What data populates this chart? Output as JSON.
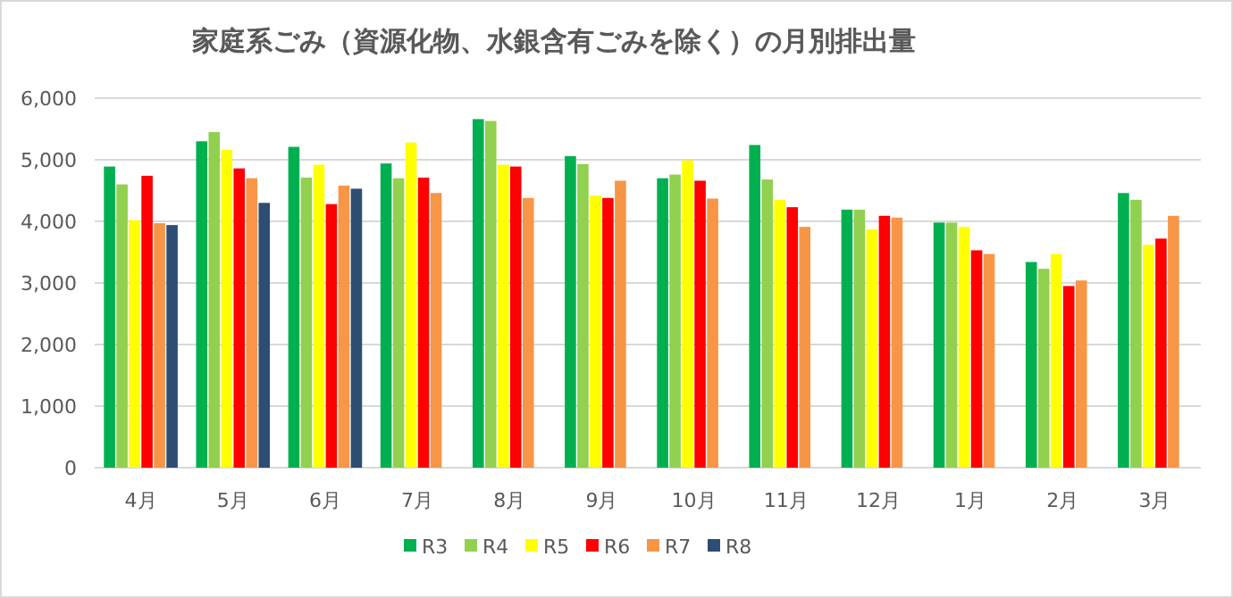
{
  "chart_data": {
    "type": "bar",
    "title": "家庭系ごみ（資源化物、水銀含有ごみを除く）の月別排出量",
    "categories": [
      "4月",
      "5月",
      "6月",
      "7月",
      "8月",
      "9月",
      "10月",
      "11月",
      "12月",
      "1月",
      "2月",
      "3月"
    ],
    "series": [
      {
        "name": "R3",
        "color": "#00b050",
        "values": [
          4890,
          5300,
          5210,
          4940,
          5660,
          5060,
          4700,
          5240,
          4190,
          3980,
          3340,
          4460
        ]
      },
      {
        "name": "R4",
        "color": "#92d050",
        "values": [
          4600,
          5450,
          4710,
          4700,
          5630,
          4930,
          4760,
          4680,
          4190,
          3980,
          3230,
          4350
        ]
      },
      {
        "name": "R5",
        "color": "#ffff00",
        "values": [
          4020,
          5160,
          4920,
          5280,
          4920,
          4420,
          4990,
          4350,
          3870,
          3910,
          3470,
          3620
        ]
      },
      {
        "name": "R6",
        "color": "#ff0000",
        "values": [
          4740,
          4860,
          4280,
          4710,
          4890,
          4380,
          4660,
          4230,
          4090,
          3530,
          2950,
          3720
        ]
      },
      {
        "name": "R7",
        "color": "#f79646",
        "values": [
          3970,
          4700,
          4580,
          4460,
          4380,
          4660,
          4370,
          3910,
          4060,
          3470,
          3040,
          4090
        ]
      },
      {
        "name": "R8",
        "color": "#2e4d73",
        "values": [
          3940,
          4300,
          4530,
          null,
          null,
          null,
          null,
          null,
          null,
          null,
          null,
          null
        ]
      }
    ],
    "ylim": [
      0,
      6000
    ],
    "yticks": [
      0,
      {
        "value": 1000,
        "label": "1,000"
      },
      {
        "value": 2000,
        "label": "2,000"
      },
      {
        "value": 3000,
        "label": "3,000"
      },
      {
        "value": 4000,
        "label": "4,000"
      },
      {
        "value": 5000,
        "label": "5,000"
      },
      {
        "value": 6000,
        "label": "6,000"
      }
    ],
    "grid": "y",
    "legend": "bottom"
  }
}
